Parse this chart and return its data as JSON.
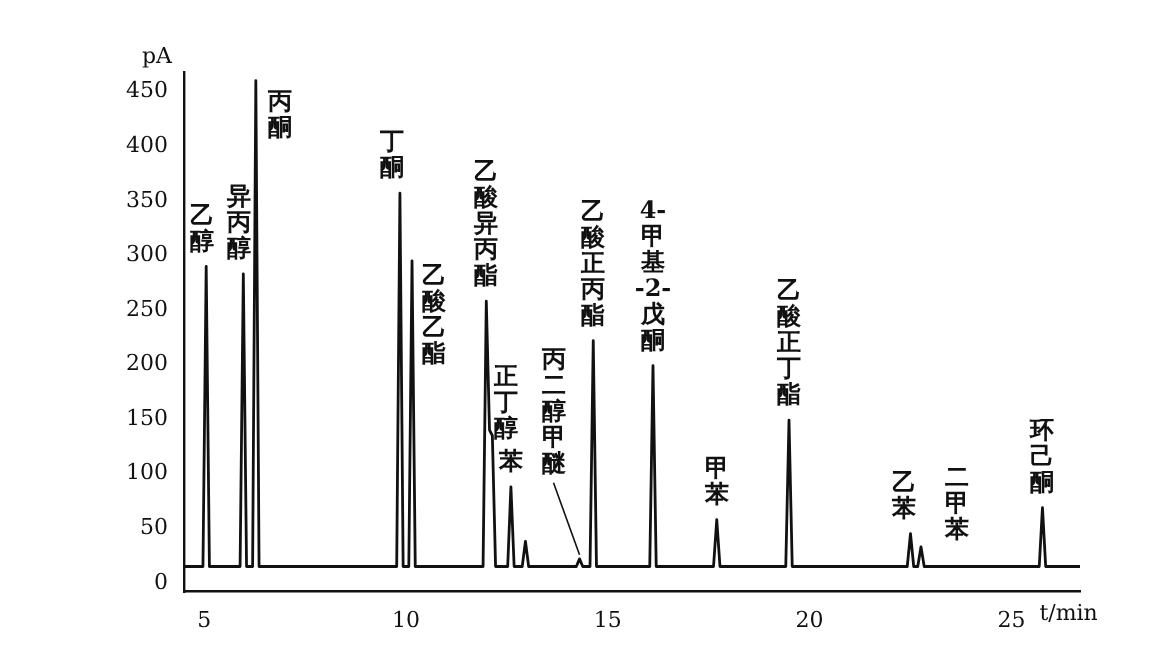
{
  "chart_data": {
    "type": "line",
    "xlabel": "t/min",
    "ylabel": "pA",
    "color": "#111111",
    "marker": "none",
    "grid": false,
    "legend": false,
    "xlim": [
      4.5,
      26.7
    ],
    "xticks": [
      5,
      10,
      15,
      20,
      25
    ],
    "ylim": [
      -8,
      468
    ],
    "yticks": [
      0,
      50,
      100,
      150,
      200,
      250,
      300,
      350,
      400,
      450
    ],
    "x": [
      4.5,
      4.97,
      5.05,
      5.13,
      5.89,
      5.97,
      6.05,
      6.2,
      6.28,
      6.36,
      9.77,
      9.85,
      9.93,
      10.07,
      10.15,
      10.23,
      11.91,
      11.99,
      12.07,
      12.14,
      12.22,
      12.52,
      12.6,
      12.68,
      12.88,
      12.96,
      13.04,
      14.22,
      14.3,
      14.38,
      14.56,
      14.64,
      14.72,
      16.04,
      16.12,
      16.2,
      17.62,
      17.7,
      17.78,
      19.41,
      19.49,
      19.57,
      22.42,
      22.5,
      22.58,
      22.68,
      22.76,
      22.84,
      25.69,
      25.77,
      25.85,
      26.7
    ],
    "values": [
      15,
      15,
      290,
      15,
      15,
      283,
      15,
      15,
      460,
      15,
      15,
      357,
      15,
      15,
      295,
      15,
      15,
      258,
      140,
      135,
      15,
      15,
      88,
      15,
      15,
      38,
      15,
      15,
      22,
      15,
      15,
      222,
      15,
      15,
      199,
      15,
      15,
      58,
      15,
      15,
      149,
      15,
      15,
      45,
      15,
      15,
      33,
      15,
      15,
      69,
      15,
      15
    ],
    "annotations": [
      {
        "text": "乙醇",
        "x": 5.05,
        "y": 290
      },
      {
        "text": "异丙醇",
        "x": 5.97,
        "y": 283
      },
      {
        "text": "丙酮",
        "x": 6.28,
        "y": 460
      },
      {
        "text": "丁酮",
        "x": 9.85,
        "y": 357
      },
      {
        "text": "乙酸乙酯",
        "x": 10.15,
        "y": 295
      },
      {
        "text": "乙酸异丙酯",
        "x": 11.99,
        "y": 258
      },
      {
        "text": "正丁醇",
        "x": 12.14,
        "y": 135
      },
      {
        "text": "苯",
        "x": 12.6,
        "y": 88
      },
      {
        "text": "丙二醇甲醚",
        "x": 14.3,
        "y": 22
      },
      {
        "text": "乙酸正丙酯",
        "x": 14.64,
        "y": 222
      },
      {
        "text": "4-甲基-2-戊酮",
        "x": 16.12,
        "y": 199
      },
      {
        "text": "甲苯",
        "x": 17.7,
        "y": 58
      },
      {
        "text": "乙酸正丁酯",
        "x": 19.49,
        "y": 149
      },
      {
        "text": "乙苯",
        "x": 22.5,
        "y": 45
      },
      {
        "text": "二甲苯",
        "x": 22.76,
        "y": 33
      },
      {
        "text": "环己酮",
        "x": 25.77,
        "y": 69
      }
    ]
  }
}
